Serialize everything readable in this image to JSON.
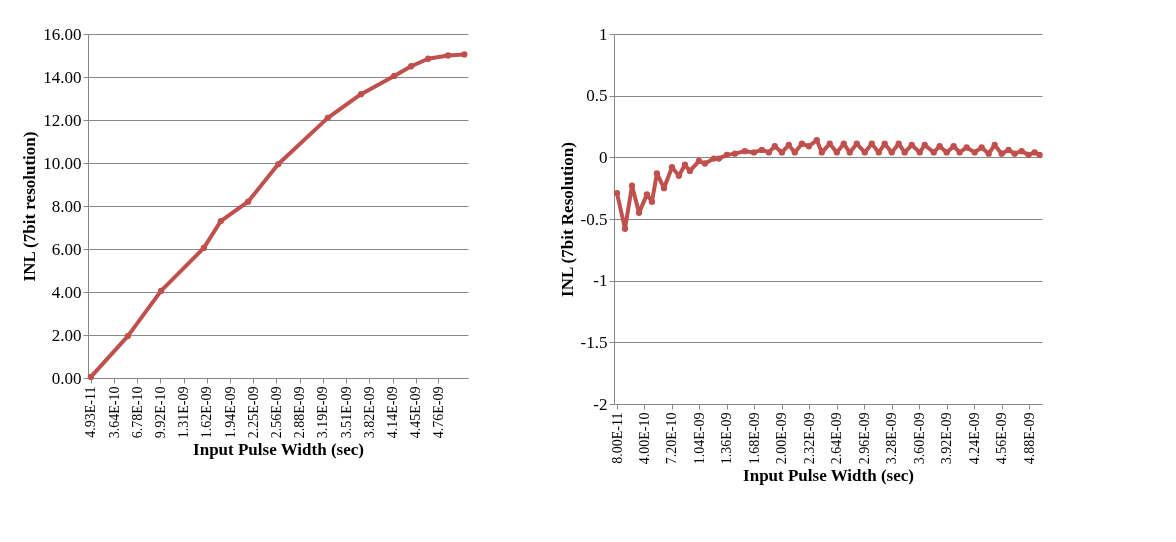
{
  "chart_data": [
    {
      "type": "line",
      "xlabel": "Input Pulse Width (sec)",
      "ylabel": "INL (7bit resolution)",
      "marker": "circle",
      "line_style": "solid",
      "grid": "y",
      "xlim": [
        1e-11,
        5.16e-09
      ],
      "xticks": [
        {
          "value": 4.93e-11,
          "label": "4.93E-11"
        },
        {
          "value": 3.64e-10,
          "label": "3.64E-10"
        },
        {
          "value": 6.78e-10,
          "label": "6.78E-10"
        },
        {
          "value": 9.92e-10,
          "label": "9.92E-10"
        },
        {
          "value": 1.31e-09,
          "label": "1.31E-09"
        },
        {
          "value": 1.62e-09,
          "label": "1.62E-09"
        },
        {
          "value": 1.94e-09,
          "label": "1.94E-09"
        },
        {
          "value": 2.25e-09,
          "label": "2.25E-09"
        },
        {
          "value": 2.56e-09,
          "label": "2.56E-09"
        },
        {
          "value": 2.88e-09,
          "label": "2.88E-09"
        },
        {
          "value": 3.19e-09,
          "label": "3.19E-09"
        },
        {
          "value": 3.51e-09,
          "label": "3.51E-09"
        },
        {
          "value": 3.82e-09,
          "label": "3.82E-09"
        },
        {
          "value": 4.14e-09,
          "label": "4.14E-09"
        },
        {
          "value": 4.45e-09,
          "label": "4.45E-09"
        },
        {
          "value": 4.76e-09,
          "label": "4.76E-09"
        }
      ],
      "ylim": [
        0,
        16
      ],
      "yticks": [
        {
          "value": 0,
          "label": "0.00"
        },
        {
          "value": 2,
          "label": "2.00"
        },
        {
          "value": 4,
          "label": "4.00"
        },
        {
          "value": 6,
          "label": "6.00"
        },
        {
          "value": 8,
          "label": "8.00"
        },
        {
          "value": 10,
          "label": "10.00"
        },
        {
          "value": 12,
          "label": "12.00"
        },
        {
          "value": 14,
          "label": "14.00"
        },
        {
          "value": 16,
          "label": "16.00"
        }
      ],
      "series": [
        {
          "color": "#c0504d",
          "x": [
            4.93e-11,
            5.5e-10,
            1e-09,
            1.58e-09,
            1.81e-09,
            2.18e-09,
            2.59e-09,
            3.26e-09,
            3.71e-09,
            4.16e-09,
            4.39e-09,
            4.62e-09,
            4.89e-09,
            5.11e-09
          ],
          "values": [
            0.05,
            1.95,
            4.05,
            6.05,
            7.3,
            8.2,
            9.95,
            12.1,
            13.2,
            14.05,
            14.5,
            14.85,
            15.0,
            15.05
          ]
        }
      ]
    },
    {
      "type": "line",
      "xlabel": "Input Pulse Width (sec)",
      "ylabel": "INL (7bit Resolution)",
      "marker": "circle",
      "line_style": "solid",
      "grid": "y",
      "xlim": [
        4.5e-11,
        5.03e-09
      ],
      "xticks": [
        {
          "value": 8e-11,
          "label": "8.00E-11"
        },
        {
          "value": 4e-10,
          "label": "4.00E-10"
        },
        {
          "value": 7.2e-10,
          "label": "7.20E-10"
        },
        {
          "value": 1.04e-09,
          "label": "1.04E-09"
        },
        {
          "value": 1.36e-09,
          "label": "1.36E-09"
        },
        {
          "value": 1.68e-09,
          "label": "1.68E-09"
        },
        {
          "value": 2e-09,
          "label": "2.00E-09"
        },
        {
          "value": 2.32e-09,
          "label": "2.32E-09"
        },
        {
          "value": 2.64e-09,
          "label": "2.64E-09"
        },
        {
          "value": 2.96e-09,
          "label": "2.96E-09"
        },
        {
          "value": 3.28e-09,
          "label": "3.28E-09"
        },
        {
          "value": 3.6e-09,
          "label": "3.60E-09"
        },
        {
          "value": 3.92e-09,
          "label": "3.92E-09"
        },
        {
          "value": 4.24e-09,
          "label": "4.24E-09"
        },
        {
          "value": 4.56e-09,
          "label": "4.56E-09"
        },
        {
          "value": 4.88e-09,
          "label": "4.88E-09"
        }
      ],
      "ylim": [
        -2,
        1
      ],
      "yticks": [
        -2,
        -1.5,
        -1,
        -0.5,
        0,
        0.5,
        1
      ],
      "series": [
        {
          "color": "#c0504d",
          "x": [
            8e-11,
            1.73e-10,
            2.55e-10,
            3.36e-10,
            4.29e-10,
            4.87e-10,
            5.45e-10,
            6.27e-10,
            7.2e-10,
            8.01e-10,
            8.71e-10,
            9.29e-10,
            1.034e-09,
            1.104e-09,
            1.209e-09,
            1.267e-09,
            1.36e-09,
            1.453e-09,
            1.569e-09,
            1.674e-09,
            1.767e-09,
            1.849e-09,
            1.918e-09,
            2e-09,
            2.081e-09,
            2.151e-09,
            2.233e-09,
            2.314e-09,
            2.407e-09,
            2.465e-09,
            2.558e-09,
            2.64e-09,
            2.721e-09,
            2.791e-09,
            2.873e-09,
            2.966e-09,
            3.047e-09,
            3.129e-09,
            3.198e-09,
            3.28e-09,
            3.361e-09,
            3.431e-09,
            3.513e-09,
            3.606e-09,
            3.664e-09,
            3.769e-09,
            3.838e-09,
            3.92e-09,
            4.001e-09,
            4.071e-09,
            4.153e-09,
            4.246e-09,
            4.327e-09,
            4.409e-09,
            4.479e-09,
            4.56e-09,
            4.641e-09,
            4.711e-09,
            4.793e-09,
            4.874e-09,
            4.944e-09,
            5.002e-09
          ],
          "values": [
            -0.29,
            -0.58,
            -0.23,
            -0.45,
            -0.3,
            -0.36,
            -0.13,
            -0.25,
            -0.08,
            -0.15,
            -0.06,
            -0.11,
            -0.03,
            -0.05,
            -0.01,
            -0.01,
            0.02,
            0.03,
            0.05,
            0.04,
            0.06,
            0.04,
            0.09,
            0.04,
            0.1,
            0.04,
            0.11,
            0.09,
            0.14,
            0.04,
            0.11,
            0.04,
            0.11,
            0.04,
            0.11,
            0.04,
            0.11,
            0.04,
            0.11,
            0.04,
            0.11,
            0.04,
            0.1,
            0.04,
            0.1,
            0.04,
            0.09,
            0.04,
            0.09,
            0.04,
            0.08,
            0.04,
            0.08,
            0.03,
            0.1,
            0.03,
            0.06,
            0.03,
            0.05,
            0.02,
            0.04,
            0.02
          ]
        }
      ]
    }
  ]
}
